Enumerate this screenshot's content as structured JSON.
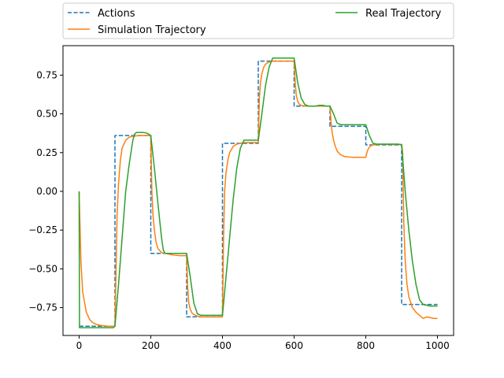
{
  "chart_data": {
    "type": "line",
    "title": "",
    "xlabel": "",
    "ylabel": "",
    "xlim": [
      -45,
      1045
    ],
    "ylim": [
      -0.93,
      0.94
    ],
    "xticks": [
      0,
      200,
      400,
      600,
      800,
      1000
    ],
    "yticks": [
      -0.75,
      -0.5,
      -0.25,
      0.0,
      0.25,
      0.5,
      0.75
    ],
    "xtick_labels": [
      "0",
      "200",
      "400",
      "600",
      "800",
      "1000"
    ],
    "ytick_labels": [
      "−0.75",
      "−0.50",
      "−0.25",
      "0.00",
      "0.25",
      "0.50",
      "0.75"
    ],
    "grid": false,
    "legend_placement": "top, outside axes, two columns",
    "series": [
      {
        "name": "Actions",
        "color": "#1f77b4",
        "style": "dashed",
        "x": [
          0,
          100,
          100,
          200,
          200,
          300,
          300,
          400,
          400,
          500,
          500,
          600,
          600,
          700,
          700,
          800,
          800,
          900,
          900,
          1000
        ],
        "y": [
          -0.87,
          -0.87,
          0.36,
          0.36,
          -0.4,
          -0.4,
          -0.81,
          -0.81,
          0.31,
          0.31,
          0.84,
          0.84,
          0.55,
          0.55,
          0.42,
          0.42,
          0.3,
          0.3,
          -0.73,
          -0.73
        ]
      },
      {
        "name": "Simulation Trajectory",
        "color": "#ff7f0e",
        "style": "solid",
        "x": [
          0,
          5,
          10,
          20,
          30,
          40,
          50,
          60,
          70,
          80,
          90,
          100,
          103,
          106,
          110,
          115,
          120,
          130,
          140,
          150,
          160,
          170,
          180,
          190,
          200,
          203,
          206,
          210,
          215,
          220,
          230,
          240,
          250,
          260,
          270,
          280,
          290,
          300,
          303,
          306,
          310,
          315,
          320,
          330,
          340,
          350,
          360,
          370,
          380,
          390,
          400,
          403,
          406,
          410,
          415,
          420,
          430,
          440,
          450,
          460,
          470,
          480,
          490,
          500,
          503,
          506,
          510,
          515,
          520,
          530,
          540,
          550,
          560,
          570,
          580,
          590,
          600,
          603,
          606,
          610,
          615,
          620,
          630,
          640,
          650,
          660,
          670,
          680,
          690,
          700,
          703,
          706,
          710,
          715,
          720,
          730,
          740,
          750,
          760,
          770,
          780,
          790,
          800,
          803,
          806,
          810,
          815,
          820,
          830,
          840,
          850,
          860,
          870,
          880,
          890,
          900,
          903,
          906,
          910,
          915,
          920,
          930,
          940,
          950,
          955,
          960,
          970,
          980,
          990,
          1000
        ],
        "y": [
          0.0,
          -0.45,
          -0.65,
          -0.78,
          -0.83,
          -0.85,
          -0.86,
          -0.865,
          -0.868,
          -0.87,
          -0.87,
          -0.87,
          -0.5,
          -0.15,
          0.05,
          0.2,
          0.28,
          0.33,
          0.35,
          0.355,
          0.358,
          0.36,
          0.36,
          0.36,
          0.36,
          0.0,
          -0.15,
          -0.25,
          -0.33,
          -0.37,
          -0.395,
          -0.4,
          -0.405,
          -0.41,
          -0.412,
          -0.415,
          -0.415,
          -0.415,
          -0.62,
          -0.72,
          -0.76,
          -0.785,
          -0.795,
          -0.805,
          -0.81,
          -0.81,
          -0.81,
          -0.81,
          -0.81,
          -0.81,
          -0.81,
          -0.3,
          0.0,
          0.12,
          0.2,
          0.25,
          0.29,
          0.305,
          0.31,
          0.315,
          0.315,
          0.315,
          0.315,
          0.315,
          0.6,
          0.7,
          0.76,
          0.8,
          0.82,
          0.835,
          0.84,
          0.84,
          0.84,
          0.84,
          0.84,
          0.84,
          0.84,
          0.7,
          0.62,
          0.58,
          0.56,
          0.555,
          0.55,
          0.55,
          0.55,
          0.55,
          0.55,
          0.55,
          0.55,
          0.55,
          0.45,
          0.38,
          0.33,
          0.29,
          0.26,
          0.235,
          0.225,
          0.222,
          0.22,
          0.22,
          0.22,
          0.22,
          0.22,
          0.25,
          0.27,
          0.285,
          0.295,
          0.3,
          0.302,
          0.303,
          0.303,
          0.303,
          0.303,
          0.303,
          0.303,
          0.303,
          0.25,
          -0.2,
          -0.45,
          -0.6,
          -0.68,
          -0.75,
          -0.78,
          -0.8,
          -0.81,
          -0.82,
          -0.81,
          -0.815,
          -0.82,
          -0.82
        ]
      },
      {
        "name": "Real Trajectory",
        "color": "#2ca02c",
        "style": "solid",
        "x": [
          0,
          1,
          5,
          20,
          40,
          60,
          80,
          95,
          100,
          110,
          120,
          130,
          140,
          150,
          155,
          160,
          170,
          180,
          190,
          200,
          210,
          220,
          230,
          235,
          240,
          250,
          260,
          270,
          280,
          290,
          300,
          310,
          320,
          330,
          340,
          350,
          360,
          370,
          380,
          390,
          400,
          410,
          420,
          430,
          440,
          450,
          460,
          470,
          480,
          490,
          500,
          510,
          520,
          530,
          540,
          550,
          560,
          570,
          580,
          590,
          600,
          610,
          620,
          630,
          640,
          650,
          660,
          670,
          680,
          690,
          700,
          710,
          720,
          730,
          740,
          750,
          760,
          770,
          780,
          790,
          800,
          810,
          820,
          830,
          840,
          850,
          860,
          870,
          880,
          890,
          900,
          910,
          920,
          930,
          940,
          950,
          960,
          970,
          980,
          990,
          1000
        ],
        "y": [
          0.0,
          -0.88,
          -0.88,
          -0.88,
          -0.88,
          -0.88,
          -0.88,
          -0.88,
          -0.87,
          -0.6,
          -0.3,
          0.0,
          0.18,
          0.33,
          0.37,
          0.38,
          0.38,
          0.38,
          0.375,
          0.36,
          0.15,
          -0.08,
          -0.3,
          -0.38,
          -0.4,
          -0.4,
          -0.4,
          -0.4,
          -0.4,
          -0.4,
          -0.4,
          -0.55,
          -0.72,
          -0.79,
          -0.8,
          -0.8,
          -0.8,
          -0.8,
          -0.8,
          -0.8,
          -0.8,
          -0.55,
          -0.3,
          -0.05,
          0.15,
          0.28,
          0.33,
          0.33,
          0.33,
          0.33,
          0.33,
          0.5,
          0.68,
          0.8,
          0.86,
          0.86,
          0.86,
          0.86,
          0.86,
          0.86,
          0.86,
          0.7,
          0.6,
          0.56,
          0.55,
          0.55,
          0.55,
          0.555,
          0.555,
          0.55,
          0.55,
          0.5,
          0.44,
          0.43,
          0.43,
          0.43,
          0.43,
          0.43,
          0.43,
          0.43,
          0.43,
          0.36,
          0.31,
          0.305,
          0.305,
          0.305,
          0.305,
          0.305,
          0.305,
          0.305,
          0.3,
          0.0,
          -0.25,
          -0.45,
          -0.6,
          -0.7,
          -0.73,
          -0.735,
          -0.74,
          -0.74,
          -0.74
        ]
      }
    ]
  }
}
